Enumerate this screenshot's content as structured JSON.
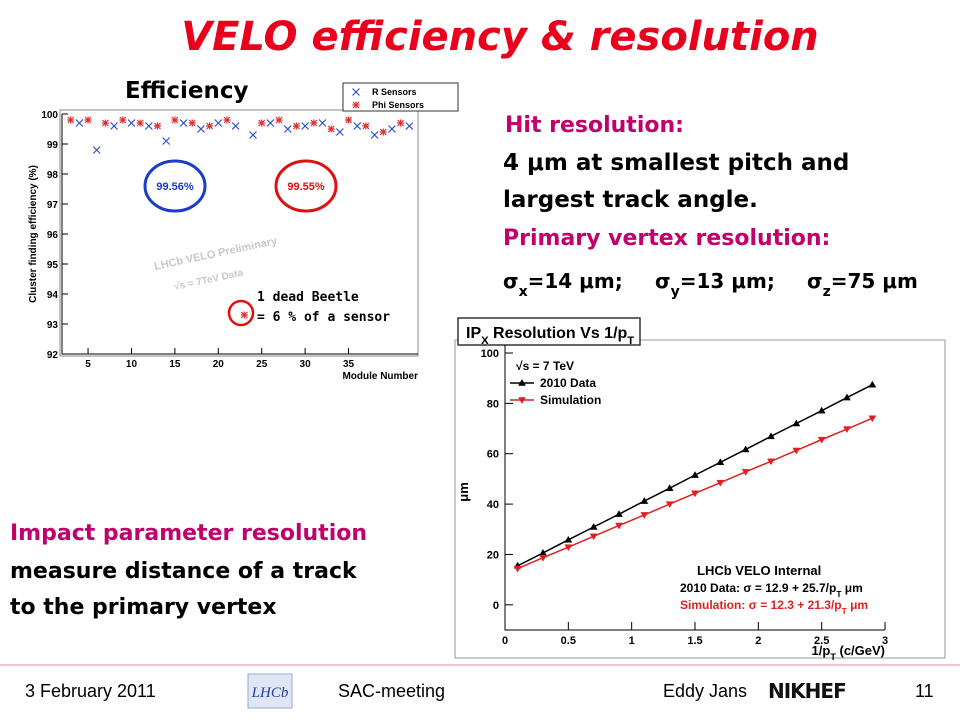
{
  "title": "VELO efficiency & resolution",
  "efficiency_heading": "Efficiency",
  "hit_resolution": {
    "heading": "Hit resolution:",
    "lines": [
      "4 μm at smallest pitch and",
      "largest track angle."
    ]
  },
  "vertex_resolution": {
    "heading": "Primary vertex resolution:",
    "items": [
      [
        "σ",
        "x",
        "=14 μm;"
      ],
      [
        "σ",
        "y",
        "=13 μm;"
      ],
      [
        "σ",
        "z",
        "=75 μm"
      ]
    ]
  },
  "impact": {
    "heading": "Impact parameter resolution",
    "lines": [
      "measure distance of a track",
      "to the primary vertex"
    ]
  },
  "footer": {
    "date": "3 February 2011",
    "logo_left": "LHCb",
    "meeting": "SAC-meeting",
    "author": "Eddy Jans",
    "logo_right": "NIKHEF",
    "page": "11"
  },
  "chart_data": [
    {
      "type": "scatter",
      "y_label": "Cluster finding efficiency (%)",
      "x_label": "Module Number",
      "xlim": [
        2,
        43
      ],
      "xticks": [
        5,
        10,
        15,
        20,
        25,
        30,
        35
      ],
      "ylim": [
        92,
        100
      ],
      "yticks": [
        92,
        93,
        94,
        95,
        96,
        97,
        98,
        99,
        100
      ],
      "legend": "top-right",
      "series": [
        {
          "name": "R Sensors",
          "color": "#3050d0",
          "marker": "x",
          "x": [
            4,
            6,
            8,
            10,
            12,
            14,
            16,
            18,
            20,
            22,
            24,
            26,
            28,
            30,
            32,
            34,
            36,
            38,
            40,
            42
          ],
          "values": [
            99.7,
            98.8,
            99.6,
            99.7,
            99.6,
            99.1,
            99.7,
            99.5,
            99.7,
            99.6,
            99.3,
            99.7,
            99.5,
            99.6,
            99.7,
            99.4,
            99.6,
            99.3,
            99.5,
            99.6
          ]
        },
        {
          "name": "Phi Sensors",
          "color": "#e03030",
          "marker": "star",
          "x": [
            3,
            5,
            7,
            9,
            11,
            13,
            15,
            17,
            19,
            21,
            23,
            25,
            27,
            29,
            31,
            33,
            35,
            37,
            39,
            41
          ],
          "values": [
            99.8,
            99.8,
            99.7,
            99.8,
            99.7,
            99.6,
            99.8,
            99.7,
            99.6,
            99.8,
            93.3,
            99.7,
            99.8,
            99.6,
            99.7,
            99.5,
            99.8,
            99.6,
            99.4,
            99.7
          ]
        }
      ],
      "annotations": {
        "r_mean": "99.56%",
        "phi_mean": "99.55%",
        "watermark": "LHCb VELO Preliminary",
        "energy": "√s = 7TeV Data",
        "dead": [
          "1 dead Beetle",
          "= 6 % of a sensor"
        ]
      }
    },
    {
      "type": "line",
      "title": [
        "IP",
        "X",
        " Resolution Vs 1/p",
        "T"
      ],
      "x_label": [
        "1/p",
        "T",
        " (c/GeV)"
      ],
      "y_label": "μm",
      "xlim": [
        0,
        3
      ],
      "xticks": [
        0,
        0.5,
        1,
        1.5,
        2,
        2.5,
        3
      ],
      "ylim": [
        -10,
        100
      ],
      "yticks": [
        0,
        20,
        40,
        60,
        80,
        100
      ],
      "legend_title": "√s = 7 TeV",
      "x": [
        0.1,
        0.3,
        0.5,
        0.7,
        0.9,
        1.1,
        1.3,
        1.5,
        1.7,
        1.9,
        2.1,
        2.3,
        2.5,
        2.7,
        2.9
      ],
      "series": [
        {
          "name": "2010 Data",
          "color": "#000000",
          "marker": "triangle-up",
          "values": [
            15.5,
            20.6,
            25.8,
            30.9,
            36.0,
            41.2,
            46.3,
            51.5,
            56.6,
            61.7,
            66.9,
            72.0,
            77.1,
            82.3,
            87.4
          ]
        },
        {
          "name": "Simulation",
          "color": "#e02020",
          "marker": "triangle-down",
          "values": [
            14.4,
            18.7,
            22.9,
            27.2,
            31.5,
            35.7,
            40.0,
            44.3,
            48.5,
            52.8,
            57.0,
            61.3,
            65.6,
            69.8,
            74.1
          ]
        }
      ],
      "annotations": {
        "label": "LHCb VELO Internal",
        "fits": [
          [
            "2010 Data: σ = 12.9 + 25.7/p",
            "T",
            " μm"
          ],
          [
            "Simulation: σ = 12.3 + 21.3/p",
            "T",
            " μm"
          ]
        ]
      }
    }
  ]
}
